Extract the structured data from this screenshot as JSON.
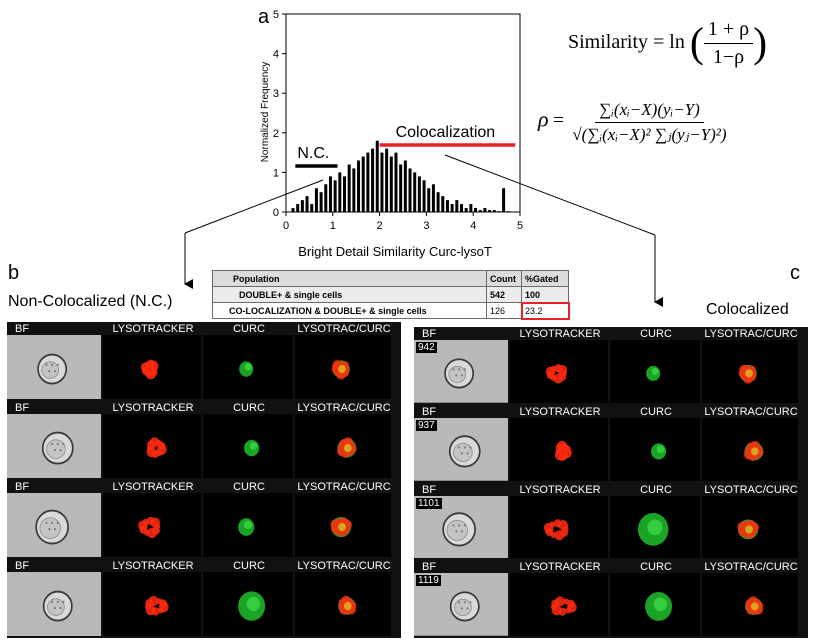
{
  "panel_a": {
    "letter": "a",
    "chart_data": {
      "type": "bar",
      "xlabel": "Bright Detail Similarity Curc-lysoT",
      "ylabel": "Normalized Frequency",
      "xlim": [
        0,
        5
      ],
      "ylim": [
        0,
        5
      ],
      "x_ticks": [
        "0",
        "1",
        "2",
        "3",
        "4",
        "5"
      ],
      "y_ticks": [
        "0",
        "1",
        "2",
        "3",
        "4",
        "5"
      ],
      "grid": false,
      "x": [
        0.15,
        0.25,
        0.35,
        0.45,
        0.55,
        0.65,
        0.75,
        0.85,
        0.95,
        1.05,
        1.15,
        1.25,
        1.35,
        1.45,
        1.55,
        1.65,
        1.75,
        1.85,
        1.95,
        2.05,
        2.15,
        2.25,
        2.35,
        2.45,
        2.55,
        2.65,
        2.75,
        2.85,
        2.95,
        3.05,
        3.15,
        3.25,
        3.35,
        3.45,
        3.55,
        3.65,
        3.75,
        3.85,
        3.95,
        4.05,
        4.15,
        4.25,
        4.35,
        4.45,
        4.55,
        4.65,
        4.75
      ],
      "values": [
        0.1,
        0.2,
        0.3,
        0.4,
        0.2,
        0.6,
        0.5,
        0.7,
        0.9,
        0.8,
        1.0,
        0.9,
        1.2,
        1.1,
        1.3,
        1.4,
        1.5,
        1.6,
        1.8,
        1.5,
        1.6,
        1.4,
        1.5,
        1.2,
        1.3,
        1.1,
        1.0,
        0.9,
        0.8,
        0.6,
        0.7,
        0.5,
        0.4,
        0.3,
        0.2,
        0.3,
        0.2,
        0.1,
        0.2,
        0.1,
        0.05,
        0.1,
        0.05,
        0.05,
        0.02,
        0.6,
        0.02
      ],
      "annotations": [
        {
          "text": "N.C.",
          "range": [
            0.2,
            1.1
          ],
          "color": "#000000"
        },
        {
          "text": "Colocalization",
          "range": [
            2.0,
            4.9
          ],
          "color": "#e8202a"
        }
      ]
    }
  },
  "formulas": {
    "similarity_lhs": "Similarity",
    "equals": "=",
    "ln": "ln",
    "sim_num": "1 + ρ",
    "sim_den": "1−ρ",
    "rho": "ρ",
    "rho_num": "∑ᵢ(xᵢ−X)(yᵢ−Y)",
    "rho_den": "√(∑ᵢ(xᵢ−X)² ∑ⱼ(yⱼ−Y)²)"
  },
  "table": {
    "headers": [
      "Population",
      "Count",
      "%Gated"
    ],
    "rows": [
      [
        "DOUBLE+ & single cells",
        "542",
        "100"
      ],
      [
        "CO-LOCALIZATION & DOUBLE+ & single cells",
        "126",
        "23.2"
      ]
    ],
    "highlight_color": "#e8202a"
  },
  "panel_b": {
    "letter": "b",
    "title": "Non-Colocalized (N.C.)",
    "channels": [
      "BF",
      "LYSOTRACKER",
      "CURC",
      "LYSOTRAC/CURC"
    ],
    "rows": [
      {
        "cell_id": ""
      },
      {
        "cell_id": ""
      },
      {
        "cell_id": ""
      },
      {
        "cell_id": ""
      }
    ]
  },
  "panel_c": {
    "letter": "c",
    "title": "Colocalized",
    "channels": [
      "BF",
      "LYSOTRACKER",
      "CURC",
      "LYSOTRAC/CURC"
    ],
    "rows": [
      {
        "cell_id": "942"
      },
      {
        "cell_id": "937"
      },
      {
        "cell_id": "1101"
      },
      {
        "cell_id": "1119"
      }
    ]
  },
  "colors": {
    "red_channel": "#ff2a10",
    "green_channel": "#1fbf2a",
    "highlight": "#e8202a"
  }
}
